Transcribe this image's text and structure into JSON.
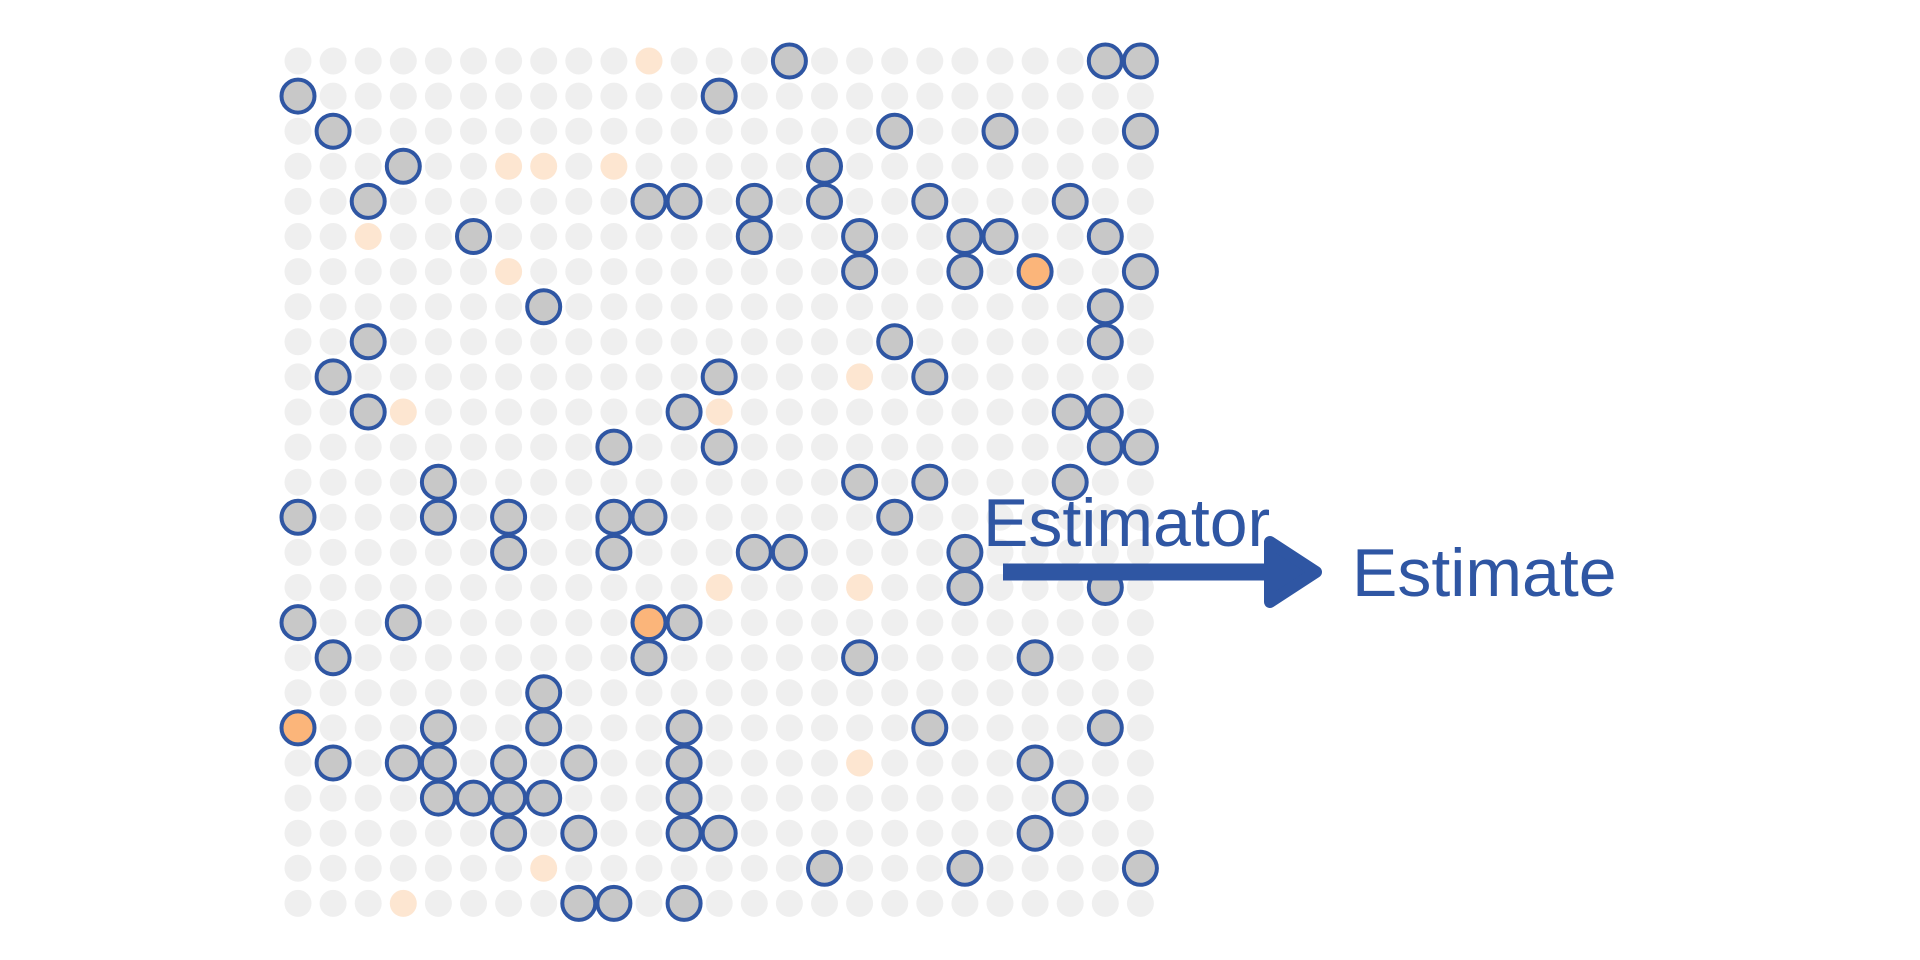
{
  "labels": {
    "estimator": "Estimator",
    "estimate": "Estimate"
  },
  "colors": {
    "background": "#ffffff",
    "population_dot": "#efefef",
    "faint_orange_dot": "#fde6d1",
    "sample_fill": "#c8c8c8",
    "sample_stroke": "#2f56a3",
    "highlight_fill": "#fbb57a",
    "arrow": "#2f56a3"
  },
  "grid": {
    "rows": 25,
    "cols": 25,
    "faint_orange": [
      [
        0,
        10
      ],
      [
        3,
        6
      ],
      [
        3,
        7
      ],
      [
        3,
        9
      ],
      [
        5,
        2
      ],
      [
        6,
        6
      ],
      [
        9,
        16
      ],
      [
        10,
        3
      ],
      [
        10,
        12
      ],
      [
        15,
        12
      ],
      [
        15,
        16
      ],
      [
        18,
        7
      ],
      [
        20,
        16
      ],
      [
        23,
        7
      ],
      [
        24,
        3
      ],
      [
        24,
        9
      ]
    ],
    "sampled": [
      [
        0,
        14
      ],
      [
        0,
        23
      ],
      [
        0,
        24
      ],
      [
        1,
        0
      ],
      [
        1,
        12
      ],
      [
        2,
        1
      ],
      [
        2,
        17
      ],
      [
        2,
        20
      ],
      [
        2,
        24
      ],
      [
        3,
        3
      ],
      [
        3,
        15
      ],
      [
        4,
        2
      ],
      [
        4,
        10
      ],
      [
        4,
        11
      ],
      [
        4,
        13
      ],
      [
        4,
        15
      ],
      [
        4,
        18
      ],
      [
        4,
        22
      ],
      [
        5,
        5
      ],
      [
        5,
        13
      ],
      [
        5,
        16
      ],
      [
        5,
        19
      ],
      [
        5,
        20
      ],
      [
        5,
        23
      ],
      [
        6,
        16
      ],
      [
        6,
        19
      ],
      [
        6,
        24
      ],
      [
        7,
        7
      ],
      [
        7,
        23
      ],
      [
        8,
        2
      ],
      [
        8,
        17
      ],
      [
        8,
        23
      ],
      [
        9,
        1
      ],
      [
        9,
        12
      ],
      [
        9,
        18
      ],
      [
        10,
        2
      ],
      [
        10,
        11
      ],
      [
        10,
        22
      ],
      [
        10,
        23
      ],
      [
        11,
        9
      ],
      [
        11,
        12
      ],
      [
        11,
        23
      ],
      [
        11,
        24
      ],
      [
        12,
        4
      ],
      [
        12,
        16
      ],
      [
        12,
        18
      ],
      [
        12,
        22
      ],
      [
        13,
        0
      ],
      [
        13,
        4
      ],
      [
        13,
        6
      ],
      [
        13,
        9
      ],
      [
        13,
        10
      ],
      [
        13,
        17
      ],
      [
        14,
        6
      ],
      [
        14,
        9
      ],
      [
        14,
        13
      ],
      [
        14,
        14
      ],
      [
        14,
        19
      ],
      [
        15,
        19
      ],
      [
        15,
        23
      ],
      [
        16,
        0
      ],
      [
        16,
        3
      ],
      [
        16,
        11
      ],
      [
        17,
        1
      ],
      [
        17,
        10
      ],
      [
        17,
        16
      ],
      [
        17,
        21
      ],
      [
        18,
        7
      ],
      [
        19,
        4
      ],
      [
        19,
        7
      ],
      [
        19,
        11
      ],
      [
        19,
        18
      ],
      [
        19,
        23
      ],
      [
        20,
        1
      ],
      [
        20,
        3
      ],
      [
        20,
        4
      ],
      [
        20,
        6
      ],
      [
        20,
        8
      ],
      [
        20,
        11
      ],
      [
        20,
        21
      ],
      [
        21,
        4
      ],
      [
        21,
        5
      ],
      [
        21,
        6
      ],
      [
        21,
        7
      ],
      [
        21,
        11
      ],
      [
        21,
        22
      ],
      [
        22,
        6
      ],
      [
        22,
        8
      ],
      [
        22,
        11
      ],
      [
        22,
        12
      ],
      [
        22,
        21
      ],
      [
        23,
        15
      ],
      [
        23,
        19
      ],
      [
        23,
        24
      ],
      [
        24,
        8
      ],
      [
        24,
        9
      ],
      [
        24,
        11
      ]
    ],
    "highlighted": [
      [
        6,
        21
      ],
      [
        16,
        10
      ],
      [
        19,
        0
      ]
    ]
  }
}
